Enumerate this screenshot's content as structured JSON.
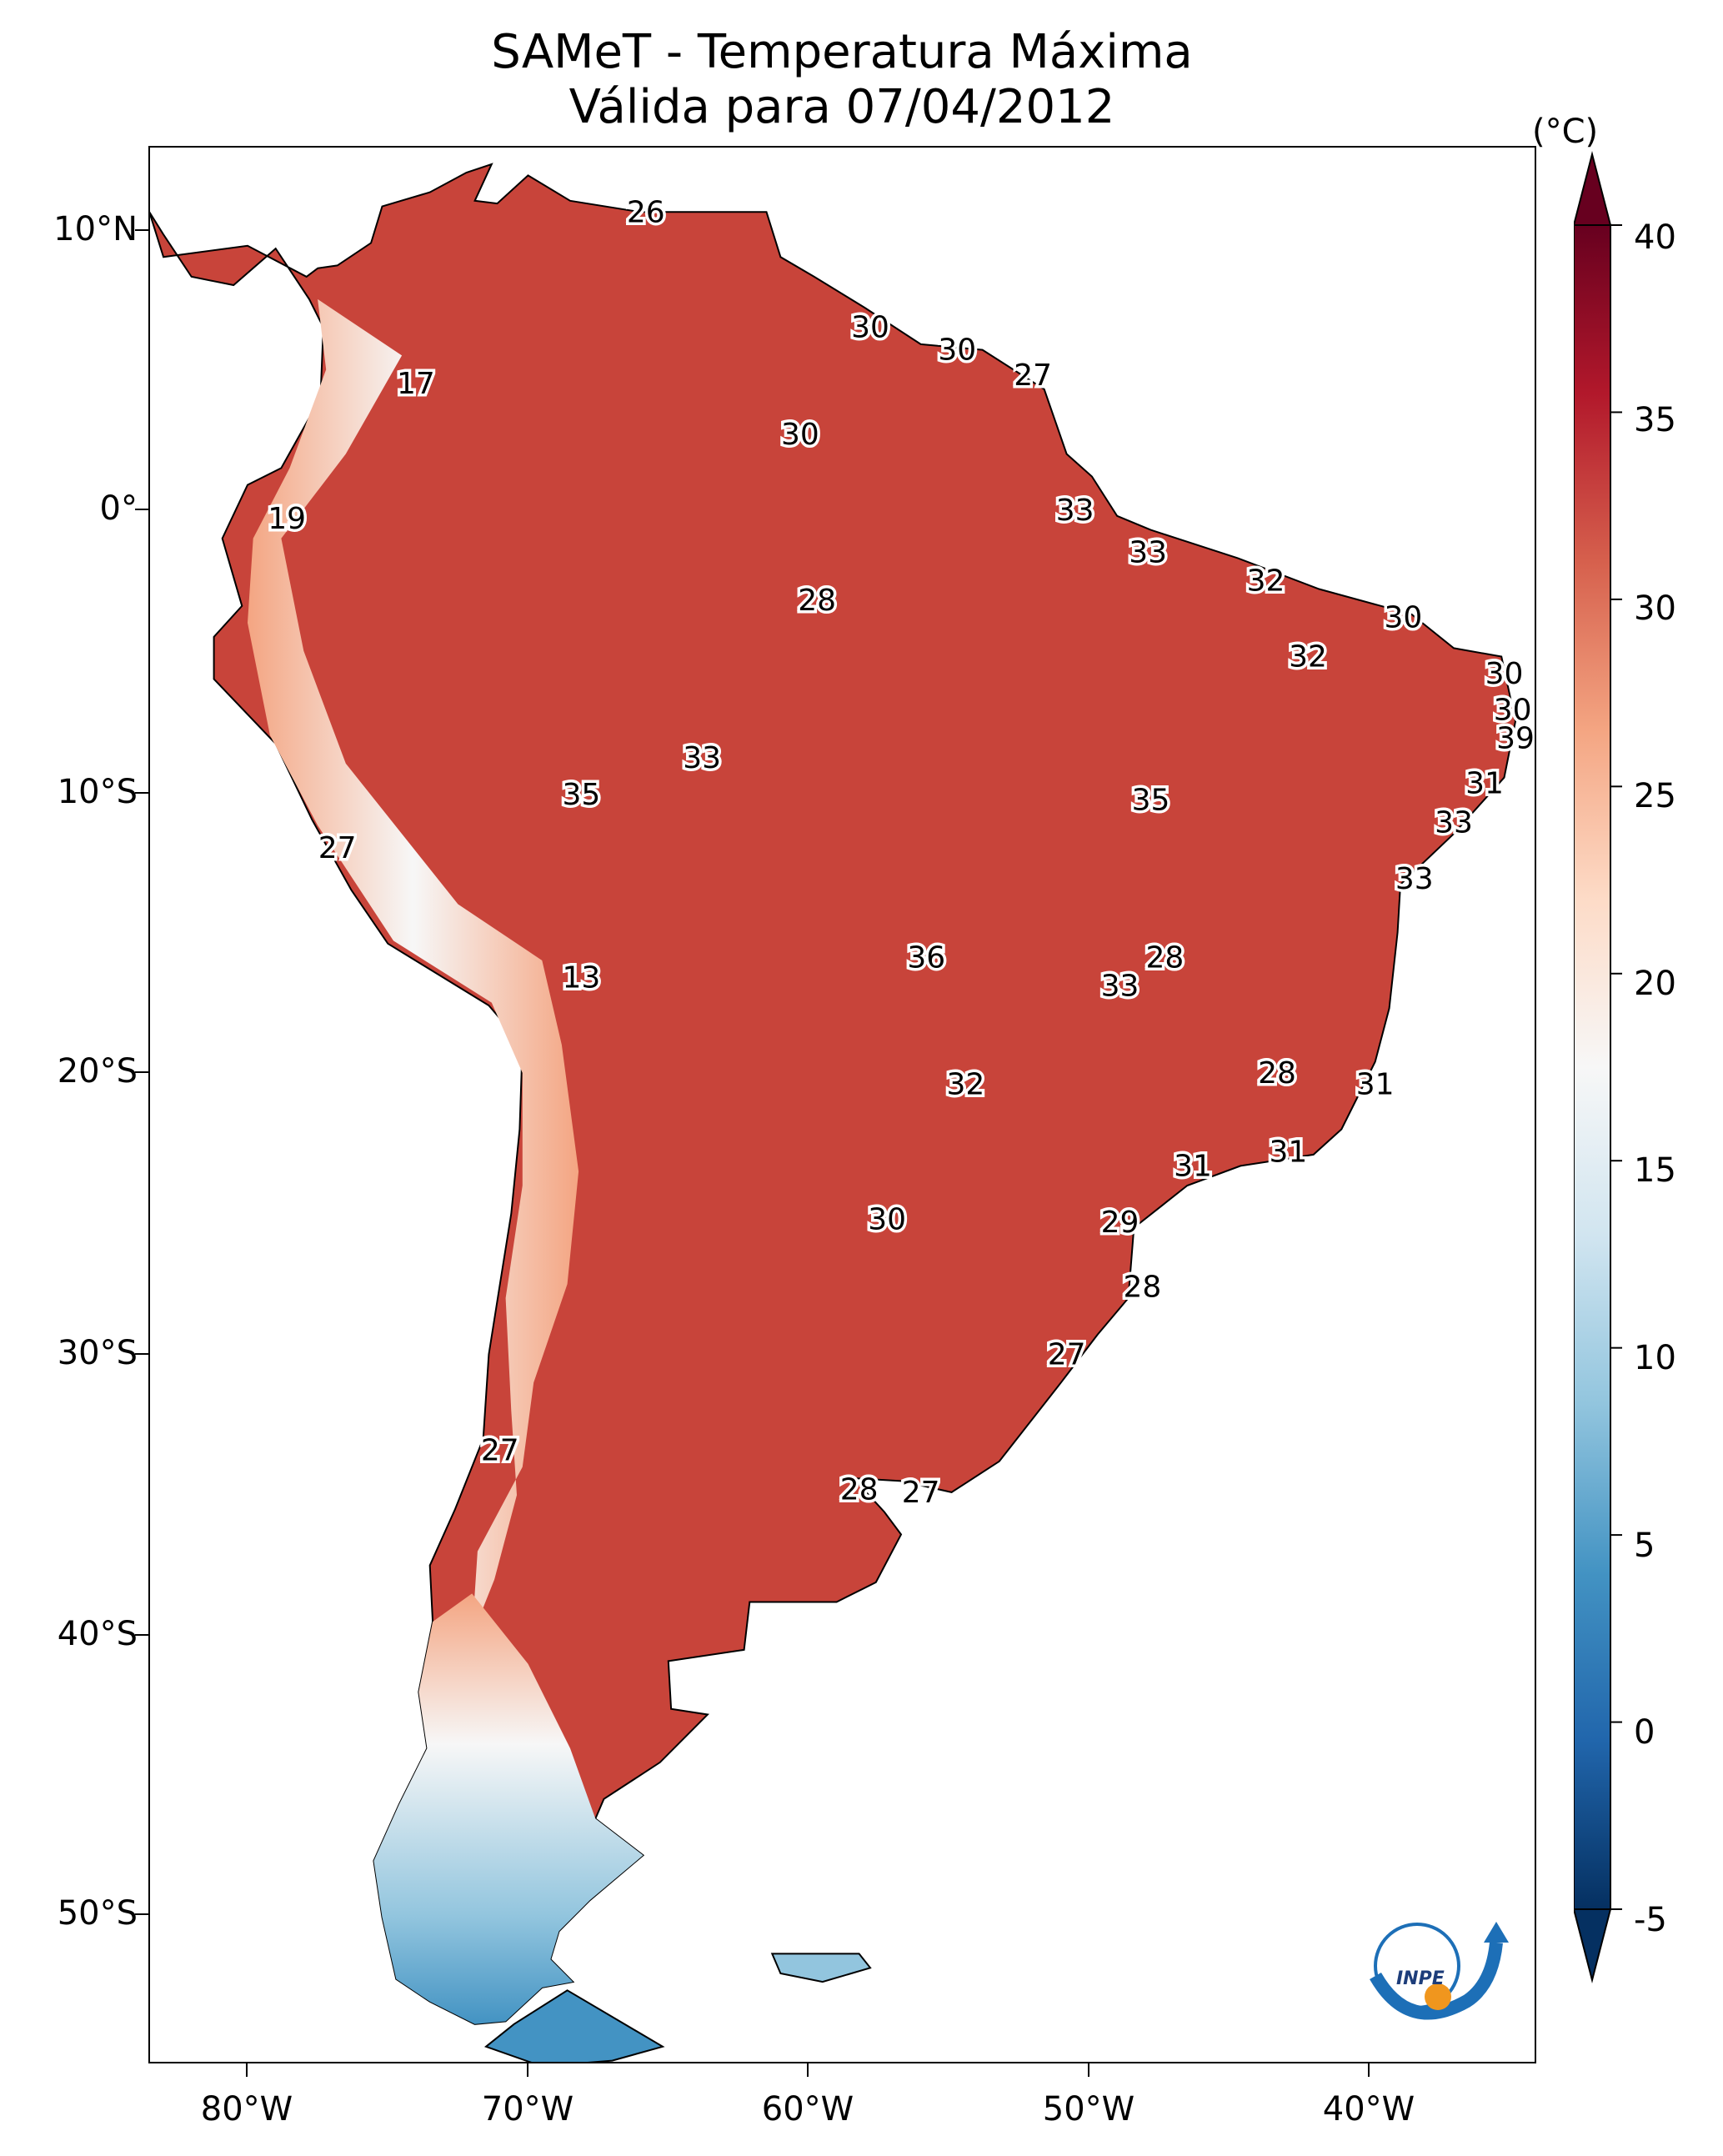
{
  "title": {
    "line1": "SAMeT - Temperatura Máxima",
    "line2": "Válida para 07/04/2012"
  },
  "lat_ticks": [
    "10°N",
    "0°",
    "10°S",
    "20°S",
    "30°S",
    "40°S",
    "50°S"
  ],
  "lon_ticks": [
    "80°W",
    "70°W",
    "60°W",
    "50°W",
    "40°W"
  ],
  "colorbar": {
    "unit": "(°C)",
    "ticks": [
      "40",
      "35",
      "30",
      "25",
      "20",
      "15",
      "10",
      "5",
      "0",
      "-5"
    ],
    "min": -5,
    "max": 40,
    "colors": [
      "#053061",
      "#2166ac",
      "#4393c3",
      "#92c5de",
      "#d1e5f0",
      "#f7f7f7",
      "#fddbc7",
      "#f4a582",
      "#d6604d",
      "#b2182b",
      "#67001f"
    ]
  },
  "land_color": "#c8443a",
  "annotations": [
    {
      "label": "26",
      "lon": -65.8,
      "lat": 10.6
    },
    {
      "label": "30",
      "lon": -57.8,
      "lat": 6.5
    },
    {
      "label": "30",
      "lon": -54.7,
      "lat": 5.7
    },
    {
      "label": "27",
      "lon": -52.0,
      "lat": 4.8
    },
    {
      "label": "17",
      "lon": -74.0,
      "lat": 4.5
    },
    {
      "label": "30",
      "lon": -60.3,
      "lat": 2.7
    },
    {
      "label": "19",
      "lon": -78.6,
      "lat": -0.3
    },
    {
      "label": "33",
      "lon": -50.5,
      "lat": 0.0
    },
    {
      "label": "33",
      "lon": -47.9,
      "lat": -1.5
    },
    {
      "label": "28",
      "lon": -59.7,
      "lat": -3.2
    },
    {
      "label": "32",
      "lon": -43.7,
      "lat": -2.5
    },
    {
      "label": "30",
      "lon": -38.8,
      "lat": -3.8
    },
    {
      "label": "32",
      "lon": -42.2,
      "lat": -5.2
    },
    {
      "label": "30",
      "lon": -35.2,
      "lat": -5.8
    },
    {
      "label": "30",
      "lon": -34.9,
      "lat": -7.1
    },
    {
      "label": "39",
      "lon": -34.8,
      "lat": -8.1
    },
    {
      "label": "33",
      "lon": -63.8,
      "lat": -8.8
    },
    {
      "label": "35",
      "lon": -68.1,
      "lat": -10.1
    },
    {
      "label": "35",
      "lon": -47.8,
      "lat": -10.3
    },
    {
      "label": "31",
      "lon": -35.9,
      "lat": -9.7
    },
    {
      "label": "33",
      "lon": -37.0,
      "lat": -11.1
    },
    {
      "label": "27",
      "lon": -76.8,
      "lat": -12.0
    },
    {
      "label": "33",
      "lon": -38.4,
      "lat": -13.1
    },
    {
      "label": "13",
      "lon": -68.1,
      "lat": -16.6
    },
    {
      "label": "36",
      "lon": -55.8,
      "lat": -15.9
    },
    {
      "label": "28",
      "lon": -47.3,
      "lat": -15.9
    },
    {
      "label": "33",
      "lon": -48.9,
      "lat": -16.9
    },
    {
      "label": "32",
      "lon": -54.4,
      "lat": -20.4
    },
    {
      "label": "28",
      "lon": -43.3,
      "lat": -20.0
    },
    {
      "label": "31",
      "lon": -39.8,
      "lat": -20.4
    },
    {
      "label": "31",
      "lon": -46.3,
      "lat": -23.3
    },
    {
      "label": "31",
      "lon": -42.9,
      "lat": -22.8
    },
    {
      "label": "30",
      "lon": -57.2,
      "lat": -25.2
    },
    {
      "label": "29",
      "lon": -48.9,
      "lat": -25.3
    },
    {
      "label": "28",
      "lon": -48.1,
      "lat": -27.6
    },
    {
      "label": "27",
      "lon": -50.8,
      "lat": -30.0
    },
    {
      "label": "27",
      "lon": -71.0,
      "lat": -33.4
    },
    {
      "label": "28",
      "lon": -58.2,
      "lat": -34.8
    },
    {
      "label": "27",
      "lon": -56.0,
      "lat": -34.9
    }
  ],
  "logo": {
    "text": "INPE"
  }
}
